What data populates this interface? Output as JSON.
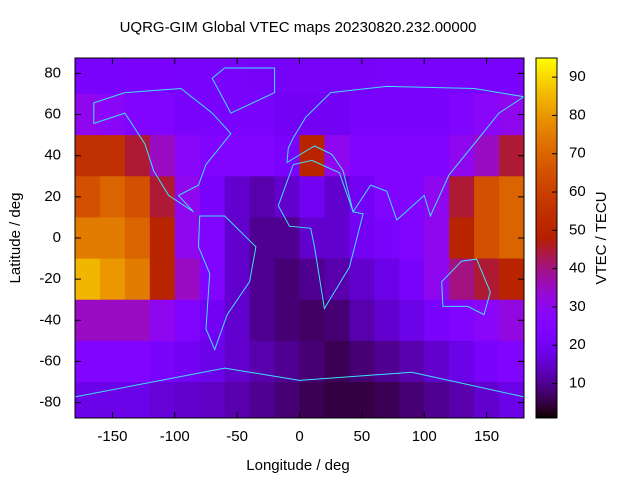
{
  "chart_data": {
    "type": "heatmap",
    "title": "UQRG-GIM Global VTEC maps 20230820.232.00000",
    "xlabel": "Longitude / deg",
    "ylabel": "Latitude / deg",
    "colorbar_label": "VTEC / TECU",
    "colormap": "gnuplot",
    "x": [
      -170,
      -150,
      -130,
      -110,
      -90,
      -70,
      -50,
      -30,
      -10,
      10,
      30,
      50,
      70,
      90,
      110,
      130,
      150,
      170
    ],
    "y": [
      80,
      60,
      40,
      20,
      0,
      -20,
      -40,
      -60,
      -80
    ],
    "cell_size": [
      20,
      20
    ],
    "values": [
      [
        22,
        22,
        23,
        23,
        22,
        22,
        22,
        21,
        21,
        21,
        21,
        21,
        22,
        22,
        22,
        22,
        22,
        22
      ],
      [
        30,
        28,
        25,
        25,
        22,
        22,
        22,
        22,
        20,
        20,
        20,
        22,
        22,
        22,
        22,
        25,
        28,
        30
      ],
      [
        55,
        55,
        45,
        35,
        28,
        25,
        25,
        25,
        22,
        50,
        30,
        25,
        25,
        25,
        25,
        30,
        35,
        45
      ],
      [
        65,
        70,
        65,
        45,
        30,
        22,
        15,
        12,
        15,
        20,
        15,
        20,
        25,
        25,
        30,
        45,
        65,
        70
      ],
      [
        75,
        75,
        70,
        50,
        30,
        25,
        15,
        10,
        10,
        15,
        15,
        20,
        22,
        25,
        30,
        50,
        65,
        70
      ],
      [
        85,
        80,
        75,
        50,
        35,
        25,
        15,
        10,
        8,
        10,
        12,
        15,
        18,
        22,
        30,
        40,
        45,
        50
      ],
      [
        35,
        35,
        35,
        30,
        25,
        20,
        15,
        10,
        8,
        7,
        8,
        12,
        15,
        18,
        22,
        25,
        28,
        32
      ],
      [
        25,
        25,
        25,
        22,
        20,
        18,
        15,
        12,
        10,
        8,
        6,
        8,
        10,
        12,
        15,
        18,
        22,
        25
      ],
      [
        18,
        18,
        18,
        16,
        15,
        14,
        12,
        10,
        8,
        6,
        5,
        5,
        6,
        8,
        10,
        12,
        15,
        18
      ]
    ],
    "xlim": [
      -180,
      180
    ],
    "ylim": [
      -87.5,
      87.5
    ],
    "clim": [
      1,
      95
    ],
    "xticks": [
      -150,
      -100,
      -50,
      0,
      50,
      100,
      150
    ],
    "yticks": [
      -80,
      -60,
      -40,
      -20,
      0,
      20,
      40,
      60,
      80
    ],
    "cticks": [
      10,
      20,
      30,
      40,
      50,
      60,
      70,
      80,
      90
    ]
  }
}
